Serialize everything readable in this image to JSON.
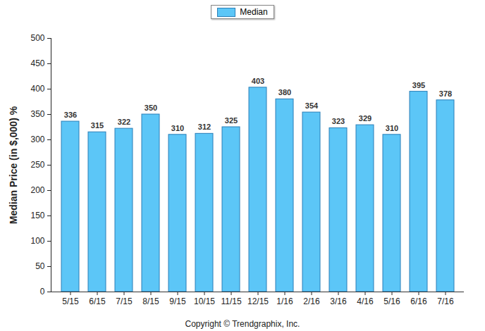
{
  "chart_data": {
    "type": "bar",
    "y_label": "Median Price (in $,000) %",
    "caption": "Copyright © Trendgraphix, Inc.",
    "categories": [
      "5/15",
      "6/15",
      "7/15",
      "8/15",
      "9/15",
      "10/15",
      "11/15",
      "12/15",
      "1/16",
      "2/16",
      "3/16",
      "4/16",
      "5/16",
      "6/16",
      "7/16"
    ],
    "series": [
      {
        "name": "Median",
        "color": "#5cc6f7",
        "values": [
          336,
          315,
          322,
          350,
          310,
          312,
          325,
          403,
          380,
          354,
          323,
          329,
          310,
          395,
          378
        ]
      }
    ],
    "ylim": [
      0,
      500
    ],
    "yticks": [
      0,
      50,
      100,
      150,
      200,
      250,
      300,
      350,
      400,
      450,
      500
    ],
    "grid": false,
    "legend": "top",
    "data_labels": true
  }
}
